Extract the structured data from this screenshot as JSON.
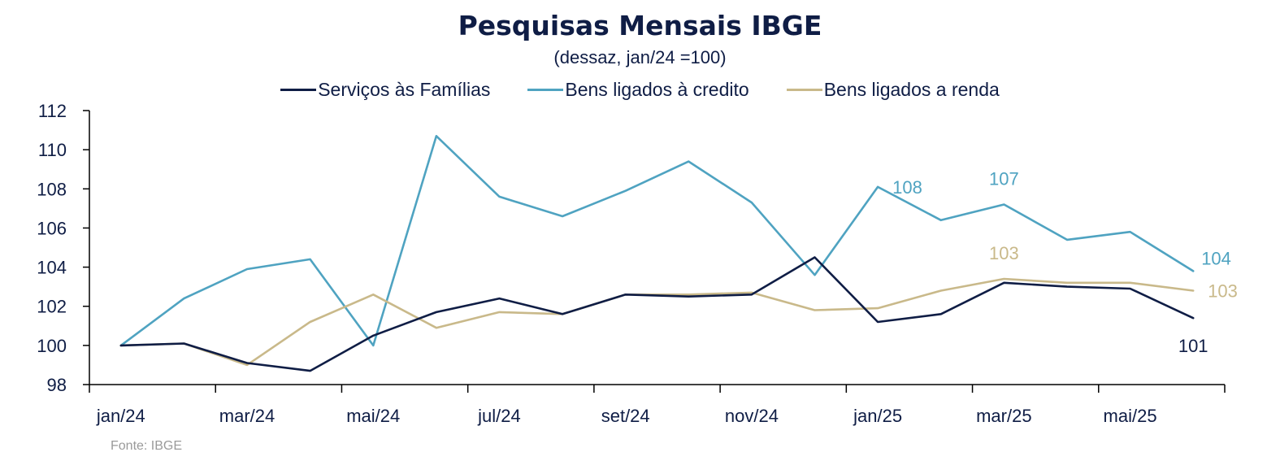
{
  "chart_data": {
    "type": "line",
    "title": "Pesquisas  Mensais IBGE",
    "subtitle": "(dessaz, jan/24 =100)",
    "source": "Fonte: IBGE",
    "legend_position": "top",
    "grid": false,
    "ylim": [
      98,
      112
    ],
    "y_ticks": [
      "98",
      "100",
      "102",
      "104",
      "106",
      "108",
      "110",
      "112"
    ],
    "x": [
      "jan/24",
      "fev/24",
      "mar/24",
      "abr/24",
      "mai/24",
      "jun/24",
      "jul/24",
      "ago/24",
      "set/24",
      "out/24",
      "nov/24",
      "dez/24",
      "jan/25",
      "fev/25",
      "mar/25",
      "abr/25",
      "mai/25",
      "jun/25"
    ],
    "x_tick_labels": [
      "jan/24",
      "mar/24",
      "mai/24",
      "jul/24",
      "set/24",
      "nov/24",
      "jan/25",
      "mar/25",
      "mai/25"
    ],
    "series": [
      {
        "name": "Serviços às Famílias",
        "color": "#0f1d45",
        "values": [
          100.0,
          100.1,
          99.1,
          98.7,
          100.5,
          101.7,
          102.4,
          101.6,
          102.6,
          102.5,
          102.6,
          104.5,
          101.2,
          101.6,
          103.2,
          103.0,
          102.9,
          101.4
        ]
      },
      {
        "name": "Bens ligados à credito",
        "color": "#4fa3c1",
        "values": [
          100.0,
          102.4,
          103.9,
          104.4,
          100.0,
          110.7,
          107.6,
          106.6,
          107.9,
          109.4,
          107.3,
          103.6,
          108.1,
          106.4,
          107.2,
          105.4,
          105.8,
          103.8
        ]
      },
      {
        "name": "Bens ligados a renda",
        "color": "#c9b98a",
        "values": [
          100.0,
          100.1,
          99.0,
          101.2,
          102.6,
          100.9,
          101.7,
          101.6,
          102.6,
          102.6,
          102.7,
          101.8,
          101.9,
          102.8,
          103.4,
          103.2,
          103.2,
          102.8
        ]
      }
    ],
    "annotations": [
      {
        "text": "108",
        "series": 1,
        "index": 12,
        "anchor": "right"
      },
      {
        "text": "107",
        "series": 1,
        "index": 14,
        "anchor": "above"
      },
      {
        "text": "104",
        "series": 1,
        "index": 17,
        "anchor": "right-above"
      },
      {
        "text": "103",
        "series": 2,
        "index": 14,
        "anchor": "above"
      },
      {
        "text": "103",
        "series": 2,
        "index": 17,
        "anchor": "right"
      },
      {
        "text": "101",
        "series": 0,
        "index": 17,
        "anchor": "below"
      }
    ]
  }
}
